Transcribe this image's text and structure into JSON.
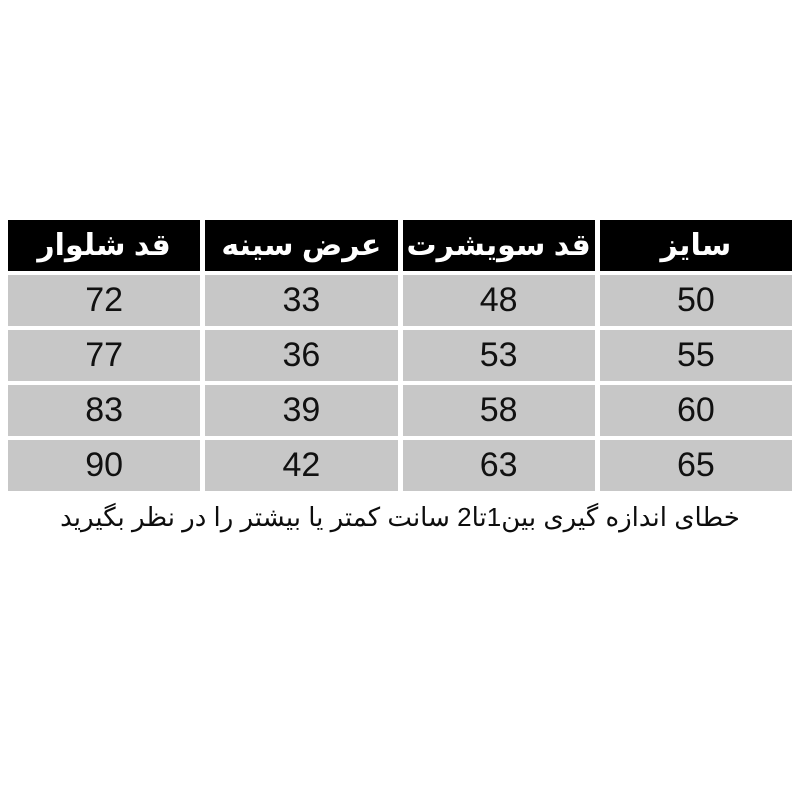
{
  "page": {
    "background_color": "#ffffff"
  },
  "chart_data": {
    "type": "table",
    "direction": "rtl",
    "columns": [
      "سایز",
      "قد سویشرت",
      "عرض سینه",
      "قد شلوار"
    ],
    "rows": [
      [
        "50",
        "48",
        "33",
        "72"
      ],
      [
        "55",
        "53",
        "36",
        "77"
      ],
      [
        "60",
        "58",
        "39",
        "83"
      ],
      [
        "65",
        "63",
        "42",
        "90"
      ]
    ],
    "note": "خطای اندازه گیری بین1تا2 سانت کمتر یا بیشتر را در نظر بگیرید",
    "colors": {
      "header_background": "#000000",
      "header_text": "#ffffff",
      "cell_background": "#c7c7c7",
      "cell_text": "#111111",
      "page_background": "#ffffff"
    }
  }
}
